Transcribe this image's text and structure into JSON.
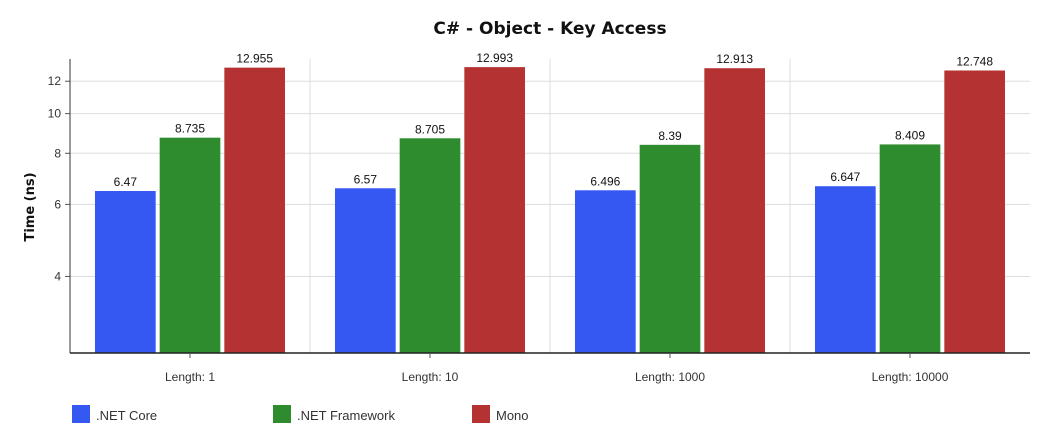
{
  "chart_data": {
    "type": "bar",
    "title": "C# - Object -  Key Access",
    "xlabel": "",
    "ylabel": "Time (ns)",
    "y_scale": "log",
    "ylim": [
      2.6,
      13.6
    ],
    "yticks": [
      4,
      6,
      8,
      10,
      12
    ],
    "grid": true,
    "legend_position": "bottom-left",
    "categories": [
      "Length: 1",
      "Length: 10",
      "Length: 1000",
      "Length: 10000"
    ],
    "series": [
      {
        "name": ".NET Core",
        "color": "#3558f2",
        "values": [
          6.47,
          6.57,
          6.496,
          6.647
        ],
        "labels": [
          "6.47",
          "6.57",
          "6.496",
          "6.647"
        ]
      },
      {
        "name": ".NET Framework",
        "color": "#2e8b2e",
        "values": [
          8.735,
          8.705,
          8.39,
          8.409
        ],
        "labels": [
          "8.735",
          "8.705",
          "8.39",
          "8.409"
        ]
      },
      {
        "name": "Mono",
        "color": "#b53232",
        "values": [
          12.955,
          12.993,
          12.913,
          12.748
        ],
        "labels": [
          "12.955",
          "12.993",
          "12.913",
          "12.748"
        ]
      }
    ]
  }
}
